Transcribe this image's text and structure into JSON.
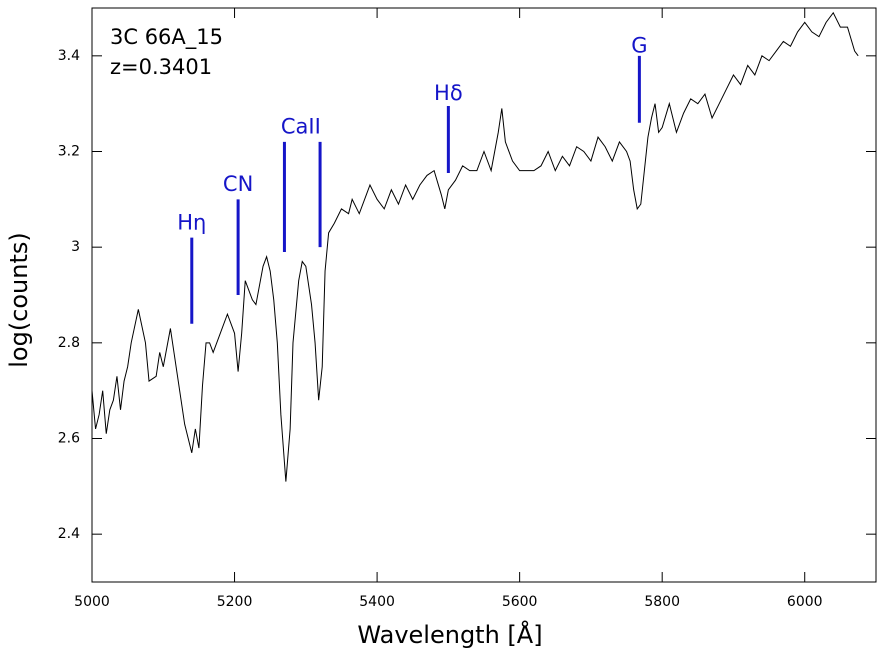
{
  "chart_data": {
    "type": "line",
    "xlabel": "Wavelength [Å]",
    "ylabel": "log(counts)",
    "texts": [
      "3C 66A_15",
      "z=0.3401"
    ],
    "xlim": [
      5000,
      6100
    ],
    "ylim": [
      2.3,
      3.5
    ],
    "xticks": [
      5000,
      5200,
      5400,
      5600,
      5800,
      6000
    ],
    "yticks": [
      2.4,
      2.6,
      2.8,
      3,
      3.2,
      3.4
    ],
    "color": "#000000",
    "annotation_color": "#1515c8",
    "annotations": [
      {
        "text": "Hη",
        "x": 5140,
        "y": 3.05,
        "lines": [
          {
            "x": 5140,
            "from": 2.84,
            "to": 3.02
          }
        ]
      },
      {
        "text": "CN",
        "x": 5205,
        "y": 3.13,
        "lines": [
          {
            "x": 5205,
            "from": 2.9,
            "to": 3.1
          }
        ]
      },
      {
        "text": "CaII",
        "x": 5293,
        "y": 3.25,
        "lines": [
          {
            "x": 5270,
            "from": 2.99,
            "to": 3.22
          },
          {
            "x": 5320,
            "from": 3.0,
            "to": 3.22
          }
        ]
      },
      {
        "text": "Hδ",
        "x": 5500,
        "y": 3.32,
        "lines": [
          {
            "x": 5500,
            "from": 3.155,
            "to": 3.295
          }
        ]
      },
      {
        "text": "G",
        "x": 5768,
        "y": 3.42,
        "lines": [
          {
            "x": 5768,
            "from": 3.26,
            "to": 3.4
          }
        ]
      }
    ],
    "x": [
      5000,
      5005,
      5010,
      5015,
      5020,
      5025,
      5030,
      5035,
      5040,
      5045,
      5050,
      5055,
      5065,
      5075,
      5080,
      5090,
      5095,
      5100,
      5110,
      5120,
      5130,
      5140,
      5145,
      5150,
      5155,
      5160,
      5165,
      5170,
      5180,
      5190,
      5200,
      5205,
      5210,
      5215,
      5225,
      5230,
      5240,
      5245,
      5250,
      5255,
      5260,
      5265,
      5272,
      5278,
      5282,
      5290,
      5295,
      5300,
      5308,
      5313,
      5318,
      5323,
      5327,
      5332,
      5340,
      5350,
      5360,
      5365,
      5375,
      5385,
      5390,
      5400,
      5410,
      5420,
      5430,
      5440,
      5450,
      5460,
      5470,
      5480,
      5490,
      5495,
      5500,
      5510,
      5520,
      5530,
      5540,
      5550,
      5560,
      5570,
      5575,
      5580,
      5590,
      5600,
      5610,
      5620,
      5630,
      5640,
      5650,
      5660,
      5670,
      5680,
      5690,
      5700,
      5710,
      5720,
      5730,
      5740,
      5750,
      5755,
      5760,
      5765,
      5770,
      5775,
      5780,
      5785,
      5790,
      5795,
      5800,
      5810,
      5820,
      5830,
      5840,
      5850,
      5860,
      5870,
      5880,
      5890,
      5900,
      5910,
      5920,
      5930,
      5940,
      5950,
      5960,
      5970,
      5980,
      5990,
      6000,
      6010,
      6020,
      6030,
      6040,
      6050,
      6060,
      6070,
      6075
    ],
    "values": [
      2.7,
      2.62,
      2.65,
      2.7,
      2.61,
      2.66,
      2.68,
      2.73,
      2.66,
      2.72,
      2.75,
      2.8,
      2.87,
      2.8,
      2.72,
      2.73,
      2.78,
      2.75,
      2.83,
      2.73,
      2.63,
      2.57,
      2.62,
      2.58,
      2.71,
      2.8,
      2.8,
      2.78,
      2.82,
      2.86,
      2.82,
      2.74,
      2.82,
      2.93,
      2.89,
      2.88,
      2.96,
      2.98,
      2.95,
      2.89,
      2.8,
      2.65,
      2.51,
      2.62,
      2.8,
      2.93,
      2.97,
      2.96,
      2.88,
      2.8,
      2.68,
      2.75,
      2.95,
      3.03,
      3.05,
      3.08,
      3.07,
      3.1,
      3.07,
      3.11,
      3.13,
      3.1,
      3.08,
      3.12,
      3.09,
      3.13,
      3.1,
      3.13,
      3.15,
      3.16,
      3.11,
      3.08,
      3.12,
      3.14,
      3.17,
      3.16,
      3.16,
      3.2,
      3.16,
      3.24,
      3.29,
      3.22,
      3.18,
      3.16,
      3.16,
      3.16,
      3.17,
      3.2,
      3.16,
      3.19,
      3.17,
      3.21,
      3.2,
      3.18,
      3.23,
      3.21,
      3.18,
      3.22,
      3.2,
      3.18,
      3.12,
      3.08,
      3.09,
      3.16,
      3.23,
      3.27,
      3.3,
      3.24,
      3.25,
      3.3,
      3.24,
      3.28,
      3.31,
      3.3,
      3.32,
      3.27,
      3.3,
      3.33,
      3.36,
      3.34,
      3.38,
      3.36,
      3.4,
      3.39,
      3.41,
      3.43,
      3.42,
      3.45,
      3.47,
      3.45,
      3.44,
      3.47,
      3.49,
      3.46,
      3.46,
      3.41,
      3.4
    ]
  }
}
